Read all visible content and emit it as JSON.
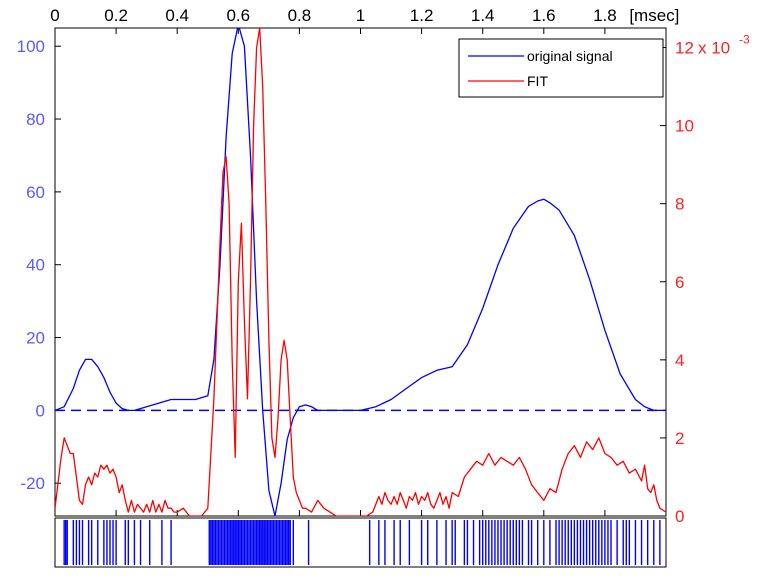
{
  "chart_data": {
    "type": "line",
    "x_axis": {
      "position": "top",
      "range": [
        0,
        2.0
      ],
      "ticks": [
        0,
        0.2,
        0.4,
        0.6,
        0.8,
        1,
        1.2,
        1.4,
        1.6,
        1.8
      ],
      "tick_labels": [
        "0",
        "0.2",
        "0.4",
        "0.6",
        "0.8",
        "1",
        "1.2",
        "1.4",
        "1.6",
        "1.8"
      ],
      "unit_label": "[msec]"
    },
    "left_axis": {
      "color": "#5a5aff",
      "range": [
        -29,
        105
      ],
      "ticks": [
        -20,
        0,
        20,
        40,
        60,
        80,
        100
      ],
      "tick_labels": [
        "-20",
        "0",
        "20",
        "40",
        "60",
        "80",
        "100"
      ]
    },
    "right_axis": {
      "color": "#ff2020",
      "range": [
        0,
        0.0125
      ],
      "ticks": [
        0,
        0.002,
        0.004,
        0.006,
        0.008,
        0.01,
        0.012
      ],
      "tick_labels": [
        "0",
        "2",
        "4",
        "6",
        "8",
        "10",
        "12"
      ],
      "multiplier_base": "x 10",
      "multiplier_exponent": "-3"
    },
    "legend": {
      "placement": "top-right",
      "entries": [
        {
          "label": "original signal",
          "color": "#0000ff"
        },
        {
          "label": "FIT",
          "color": "#ff0000"
        }
      ]
    },
    "zero_line": {
      "y": 0,
      "color": "#0000ff",
      "style": "dashed"
    },
    "grid": false,
    "series": [
      {
        "name": "original signal",
        "axis": "left",
        "color": "#0000ff",
        "x": [
          0,
          0.03,
          0.06,
          0.08,
          0.1,
          0.12,
          0.14,
          0.16,
          0.18,
          0.2,
          0.22,
          0.24,
          0.26,
          0.3,
          0.34,
          0.38,
          0.42,
          0.46,
          0.5,
          0.52,
          0.54,
          0.56,
          0.58,
          0.6,
          0.62,
          0.64,
          0.66,
          0.68,
          0.7,
          0.72,
          0.74,
          0.76,
          0.78,
          0.8,
          0.82,
          0.84,
          0.86,
          0.88,
          0.9,
          0.95,
          1.0,
          1.05,
          1.1,
          1.15,
          1.2,
          1.25,
          1.3,
          1.35,
          1.4,
          1.45,
          1.5,
          1.55,
          1.58,
          1.6,
          1.62,
          1.65,
          1.7,
          1.75,
          1.8,
          1.85,
          1.9,
          1.93,
          1.96,
          2.0
        ],
        "y": [
          0,
          1,
          6,
          11,
          14,
          14,
          12,
          9,
          5,
          2,
          0.5,
          0,
          0,
          1,
          2,
          3,
          3,
          3,
          4,
          14,
          40,
          75,
          98,
          106,
          100,
          70,
          30,
          0,
          -22,
          -29,
          -20,
          -8,
          -2,
          1,
          1.5,
          1,
          0,
          0,
          0,
          0,
          0,
          1,
          3,
          6,
          9,
          11,
          12,
          18,
          28,
          40,
          50,
          56,
          57.5,
          58,
          57,
          55,
          48,
          36,
          22,
          10,
          3,
          1,
          0,
          0
        ]
      },
      {
        "name": "FIT",
        "axis": "right",
        "color": "#ff0000",
        "x": [
          0,
          0.02,
          0.03,
          0.04,
          0.05,
          0.06,
          0.07,
          0.08,
          0.09,
          0.1,
          0.11,
          0.12,
          0.13,
          0.14,
          0.15,
          0.16,
          0.17,
          0.18,
          0.19,
          0.2,
          0.21,
          0.22,
          0.23,
          0.24,
          0.25,
          0.26,
          0.27,
          0.28,
          0.29,
          0.3,
          0.31,
          0.32,
          0.33,
          0.34,
          0.35,
          0.36,
          0.37,
          0.38,
          0.39,
          0.4,
          0.42,
          0.44,
          0.46,
          0.48,
          0.5,
          0.52,
          0.54,
          0.55,
          0.56,
          0.57,
          0.58,
          0.59,
          0.6,
          0.61,
          0.62,
          0.63,
          0.64,
          0.65,
          0.66,
          0.67,
          0.68,
          0.69,
          0.7,
          0.71,
          0.72,
          0.73,
          0.74,
          0.75,
          0.76,
          0.77,
          0.78,
          0.79,
          0.8,
          0.81,
          0.82,
          0.84,
          0.86,
          0.88,
          0.9,
          0.92,
          0.94,
          0.96,
          0.98,
          1.0,
          1.02,
          1.04,
          1.05,
          1.06,
          1.07,
          1.08,
          1.09,
          1.1,
          1.11,
          1.12,
          1.13,
          1.14,
          1.15,
          1.16,
          1.17,
          1.18,
          1.19,
          1.2,
          1.21,
          1.22,
          1.23,
          1.24,
          1.25,
          1.26,
          1.27,
          1.28,
          1.29,
          1.3,
          1.32,
          1.34,
          1.36,
          1.38,
          1.4,
          1.42,
          1.44,
          1.46,
          1.48,
          1.5,
          1.52,
          1.54,
          1.56,
          1.58,
          1.6,
          1.62,
          1.64,
          1.66,
          1.68,
          1.7,
          1.72,
          1.74,
          1.76,
          1.78,
          1.8,
          1.82,
          1.84,
          1.86,
          1.88,
          1.9,
          1.92,
          1.93,
          1.94,
          1.95,
          1.96,
          1.97,
          1.98,
          2.0
        ],
        "y": [
          0.0002,
          0.0015,
          0.002,
          0.0018,
          0.0016,
          0.0016,
          0.001,
          0.0004,
          0.0003,
          0.0008,
          0.001,
          0.0008,
          0.0011,
          0.001,
          0.0013,
          0.0012,
          0.0013,
          0.0011,
          0.0012,
          0.001,
          0.0006,
          0.0008,
          0.0004,
          0.0001,
          0.0004,
          0.0001,
          0.0003,
          0.0002,
          0.0001,
          0.0003,
          0.0001,
          0.0004,
          0.0001,
          0.0003,
          0.0001,
          0.0004,
          0.0002,
          0.0002,
          0.0001,
          0.0001,
          0.0002,
          0.0,
          0.0,
          0.0,
          0.0002,
          0.003,
          0.007,
          0.0088,
          0.0092,
          0.008,
          0.004,
          0.0015,
          0.006,
          0.0075,
          0.005,
          0.003,
          0.006,
          0.01,
          0.012,
          0.0125,
          0.011,
          0.008,
          0.0045,
          0.002,
          0.0015,
          0.0025,
          0.004,
          0.0045,
          0.004,
          0.0025,
          0.001,
          0.0006,
          0.0004,
          0.0002,
          0.0002,
          0.0001,
          0.0004,
          0.0002,
          0.0001,
          0.0,
          0.0,
          0.0,
          0.0,
          0.0,
          0.0,
          0.0001,
          0.0003,
          0.0005,
          0.0003,
          0.0006,
          0.0004,
          0.0003,
          0.0005,
          0.0003,
          0.0006,
          0.0004,
          0.0002,
          0.0005,
          0.0004,
          0.0006,
          0.0003,
          0.0005,
          0.0004,
          0.0006,
          0.0003,
          0.0002,
          0.0004,
          0.0006,
          0.0003,
          0.0005,
          0.0002,
          0.0006,
          0.0005,
          0.001,
          0.0012,
          0.0014,
          0.0013,
          0.0016,
          0.0013,
          0.0015,
          0.0014,
          0.0013,
          0.0015,
          0.0012,
          0.0008,
          0.0006,
          0.0004,
          0.0007,
          0.0006,
          0.0012,
          0.0016,
          0.0018,
          0.0015,
          0.0019,
          0.0017,
          0.002,
          0.0016,
          0.0015,
          0.0013,
          0.0014,
          0.0011,
          0.0012,
          0.0009,
          0.0013,
          0.0007,
          0.0006,
          0.0008,
          0.0004,
          0.0002,
          0.0001
        ]
      }
    ],
    "event_raster": {
      "color": "#0000ff",
      "x": [
        0.03,
        0.035,
        0.04,
        0.06,
        0.07,
        0.08,
        0.09,
        0.11,
        0.12,
        0.14,
        0.16,
        0.17,
        0.18,
        0.19,
        0.2,
        0.23,
        0.24,
        0.26,
        0.28,
        0.31,
        0.35,
        0.38,
        0.505,
        0.51,
        0.515,
        0.52,
        0.525,
        0.53,
        0.535,
        0.54,
        0.545,
        0.55,
        0.555,
        0.56,
        0.565,
        0.57,
        0.575,
        0.58,
        0.585,
        0.59,
        0.595,
        0.6,
        0.605,
        0.61,
        0.615,
        0.62,
        0.625,
        0.63,
        0.635,
        0.64,
        0.645,
        0.65,
        0.655,
        0.66,
        0.665,
        0.67,
        0.675,
        0.68,
        0.685,
        0.69,
        0.695,
        0.7,
        0.705,
        0.71,
        0.715,
        0.72,
        0.725,
        0.73,
        0.735,
        0.74,
        0.745,
        0.75,
        0.755,
        0.76,
        0.765,
        0.77,
        0.78,
        0.83,
        1.03,
        1.06,
        1.08,
        1.11,
        1.13,
        1.16,
        1.2,
        1.22,
        1.25,
        1.28,
        1.3,
        1.31,
        1.34,
        1.35,
        1.37,
        1.39,
        1.4,
        1.41,
        1.42,
        1.43,
        1.44,
        1.45,
        1.46,
        1.47,
        1.48,
        1.49,
        1.5,
        1.51,
        1.52,
        1.53,
        1.55,
        1.56,
        1.58,
        1.6,
        1.62,
        1.64,
        1.65,
        1.66,
        1.67,
        1.68,
        1.69,
        1.7,
        1.71,
        1.72,
        1.73,
        1.74,
        1.75,
        1.76,
        1.77,
        1.78,
        1.79,
        1.8,
        1.81,
        1.82,
        1.84,
        1.86,
        1.87,
        1.88,
        1.9,
        1.92,
        1.94,
        1.96,
        1.98
      ]
    }
  }
}
